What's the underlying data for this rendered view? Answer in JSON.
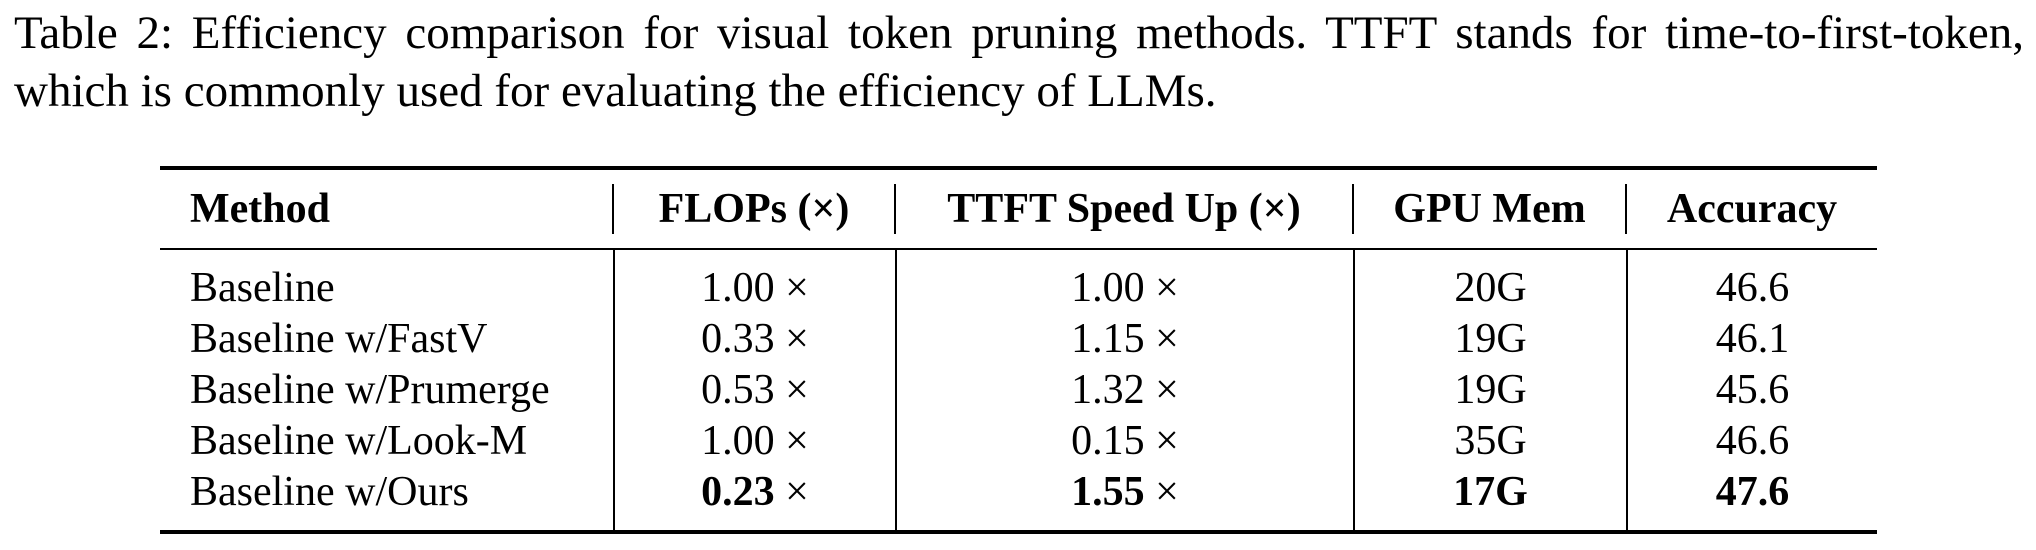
{
  "caption": "Table 2: Efficiency comparison for visual token pruning methods. TTFT stands for time-to-first-token, which is commonly used for evaluating the efficiency of LLMs.",
  "table": {
    "headers": {
      "method": "Method",
      "flops": "FLOPs (×)",
      "ttft": "TTFT Speed Up (×)",
      "gpu_mem": "GPU Mem",
      "accuracy": "Accuracy"
    },
    "rows": [
      {
        "method": "Baseline",
        "flops": "1.00 ×",
        "ttft": "1.00 ×",
        "gpu_mem": "20G",
        "accuracy": "46.6"
      },
      {
        "method": "Baseline w/FastV",
        "flops": "0.33 ×",
        "ttft": "1.15 ×",
        "gpu_mem": "19G",
        "accuracy": "46.1"
      },
      {
        "method": "Baseline w/Prumerge",
        "flops": "0.53 ×",
        "ttft": "1.32 ×",
        "gpu_mem": "19G",
        "accuracy": "45.6"
      },
      {
        "method": "Baseline w/Look-M",
        "flops": "1.00 ×",
        "ttft": "0.15 ×",
        "gpu_mem": "35G",
        "accuracy": "46.6"
      },
      {
        "method": "Baseline w/Ours",
        "flops_value": "0.23",
        "flops_unit": "×",
        "ttft_value": "1.55",
        "ttft_unit": "×",
        "gpu_mem": "17G",
        "accuracy": "47.6"
      }
    ]
  }
}
